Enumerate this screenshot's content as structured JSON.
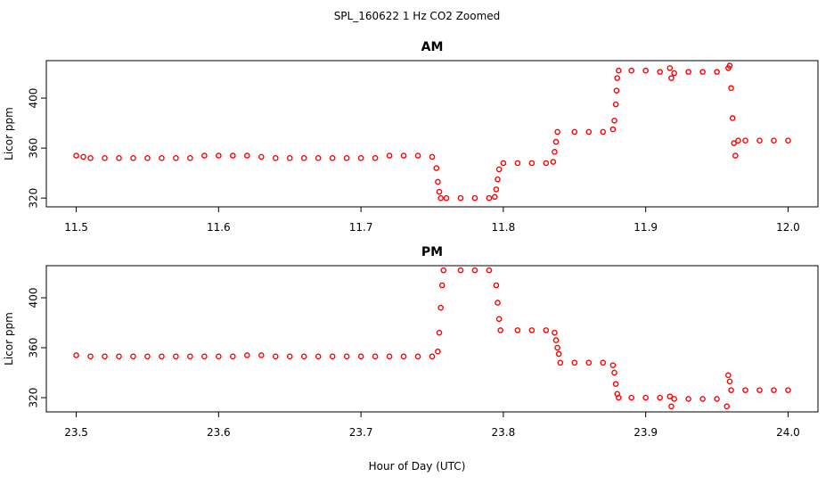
{
  "title": "SPL_160622  1 Hz CO2 Zoomed",
  "x_label": "Hour of Day (UTC)",
  "chart_data": [
    {
      "type": "scatter",
      "title": "AM",
      "y_label": "Licor ppm",
      "color": "#ff0000",
      "xlim": [
        11.479,
        12.021
      ],
      "ylim": [
        313,
        430
      ],
      "xticks": [
        11.5,
        11.6,
        11.7,
        11.8,
        11.9,
        {
          "value": 12,
          "label": "12.0"
        }
      ],
      "yticks": [
        320,
        360,
        400
      ],
      "x": [
        11.5,
        11.505,
        11.51,
        11.52,
        11.53,
        11.54,
        11.55,
        11.56,
        11.57,
        11.58,
        11.59,
        11.6,
        11.61,
        11.62,
        11.63,
        11.64,
        11.65,
        11.66,
        11.67,
        11.68,
        11.69,
        11.7,
        11.71,
        11.72,
        11.73,
        11.74,
        11.75,
        11.753,
        11.754,
        11.755,
        11.756,
        11.76,
        11.77,
        11.78,
        11.79,
        11.794,
        11.795,
        11.796,
        11.797,
        11.8,
        11.81,
        11.82,
        11.83,
        11.835,
        11.836,
        11.837,
        11.838,
        11.85,
        11.86,
        11.87,
        11.877,
        11.878,
        11.879,
        11.8795,
        11.88,
        11.881,
        11.89,
        11.9,
        11.91,
        11.917,
        11.918,
        11.92,
        11.93,
        11.94,
        11.95,
        11.958,
        11.959,
        11.96,
        11.961,
        11.962,
        11.963,
        11.965,
        11.97,
        11.98,
        11.99,
        12.0
      ],
      "values": [
        354,
        353,
        352,
        352,
        352,
        352,
        352,
        352,
        352,
        352,
        354,
        354,
        354,
        354,
        353,
        352,
        352,
        352,
        352,
        352,
        352,
        352,
        352,
        354,
        354,
        354,
        353,
        344,
        333,
        325,
        320,
        320,
        320,
        320,
        320,
        321,
        327,
        335,
        343,
        348,
        348,
        348,
        348,
        349,
        357,
        365,
        373,
        373,
        373,
        373,
        375,
        382,
        395,
        406,
        416,
        422,
        422,
        422,
        421,
        424,
        416,
        420,
        421,
        421,
        421,
        424,
        426,
        408,
        384,
        364,
        354,
        366,
        366,
        366,
        366,
        366
      ]
    },
    {
      "type": "scatter",
      "title": "PM",
      "y_label": "Licor ppm",
      "color": "#ff0000",
      "xlim": [
        23.479,
        24.021
      ],
      "ylim": [
        308.6,
        425.7
      ],
      "xticks": [
        23.5,
        23.6,
        23.7,
        23.8,
        23.9,
        {
          "value": 24,
          "label": "24.0"
        }
      ],
      "yticks": [
        320,
        360,
        400
      ],
      "x": [
        23.5,
        23.51,
        23.52,
        23.53,
        23.54,
        23.55,
        23.56,
        23.57,
        23.58,
        23.59,
        23.6,
        23.61,
        23.62,
        23.63,
        23.64,
        23.65,
        23.66,
        23.67,
        23.68,
        23.69,
        23.7,
        23.71,
        23.72,
        23.73,
        23.74,
        23.75,
        23.754,
        23.755,
        23.756,
        23.757,
        23.758,
        23.77,
        23.78,
        23.79,
        23.795,
        23.796,
        23.797,
        23.798,
        23.81,
        23.82,
        23.83,
        23.836,
        23.837,
        23.838,
        23.839,
        23.84,
        23.85,
        23.86,
        23.87,
        23.877,
        23.878,
        23.879,
        23.88,
        23.881,
        23.89,
        23.9,
        23.91,
        23.917,
        23.918,
        23.92,
        23.93,
        23.94,
        23.95,
        23.957,
        23.958,
        23.959,
        23.96,
        23.97,
        23.98,
        23.99,
        24.0
      ],
      "values": [
        354,
        353,
        353,
        353,
        353,
        353,
        353,
        353,
        353,
        353,
        353,
        353,
        354,
        354,
        353,
        353,
        353,
        353,
        353,
        353,
        353,
        353,
        353,
        353,
        353,
        353,
        357,
        372,
        392,
        410,
        422,
        422,
        422,
        422,
        410,
        396,
        383,
        374,
        374,
        374,
        374,
        372,
        366,
        360,
        355,
        348,
        348,
        348,
        348,
        346,
        340,
        331,
        323,
        320,
        320,
        320,
        320,
        321,
        313,
        319,
        319,
        319,
        319,
        313,
        338,
        333,
        326,
        326,
        326,
        326,
        326
      ]
    }
  ]
}
